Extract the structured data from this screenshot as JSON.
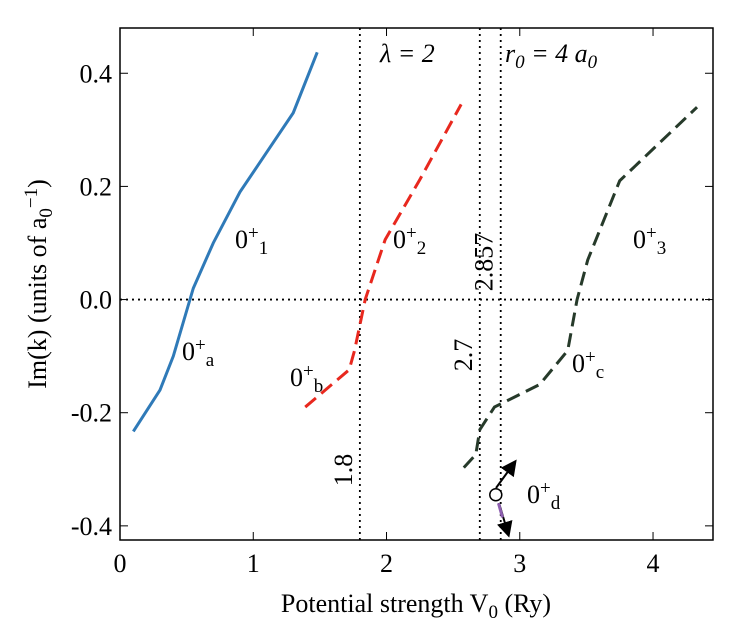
{
  "chart_data": {
    "type": "line",
    "xlabel": [
      {
        "t": "Potential strength "
      },
      {
        "t": "V"
      },
      {
        "sub": "0"
      },
      {
        "t": " (Ry)"
      }
    ],
    "ylabel": [
      {
        "t": "Im("
      },
      {
        "t": "k"
      },
      {
        "t": ") (units of "
      },
      {
        "t": "a"
      },
      {
        "sub": "0"
      },
      {
        "sup": "−1"
      },
      {
        "t": ")"
      }
    ],
    "xlim": [
      0,
      4.45
    ],
    "ylim": [
      -0.425,
      0.48
    ],
    "xticks": [
      0,
      1,
      2,
      3,
      4
    ],
    "yticks": [
      0.4,
      0.2,
      {
        "value": 0,
        "label": "0.0"
      },
      -0.2,
      -0.4
    ],
    "series": [
      {
        "color": "#2f7ab8",
        "style": "solid",
        "x": [
          0.1,
          0.3,
          0.4,
          0.5,
          0.55,
          0.7,
          0.9,
          1.1,
          1.3,
          1.48
        ],
        "values": [
          -0.233,
          -0.16,
          -0.1,
          -0.02,
          0.02,
          0.1,
          0.19,
          0.26,
          0.33,
          0.437
        ]
      },
      {
        "color": "#e8281e",
        "style": "dashed",
        "x": [
          1.39,
          1.72,
          1.76,
          1.84,
          1.99,
          2.25,
          2.56
        ],
        "values": [
          -0.19,
          -0.124,
          -0.09,
          0.0,
          0.106,
          0.212,
          0.345
        ]
      },
      {
        "color": "#263a2a",
        "style": "dashed",
        "x": [
          2.58,
          2.67,
          2.7,
          2.81,
          3.15,
          3.36,
          3.43,
          3.51,
          3.75,
          4.33
        ],
        "values": [
          -0.297,
          -0.274,
          -0.23,
          -0.19,
          -0.15,
          -0.09,
          0.0,
          0.07,
          0.21,
          0.34
        ]
      },
      {
        "color": "#8e5fb0",
        "style": "solid",
        "x": [
          2.84,
          2.87
        ],
        "values": [
          -0.36,
          -0.385
        ]
      }
    ],
    "point": {
      "x": 2.82,
      "y": -0.345
    },
    "vlines": [
      1.8,
      2.7,
      2.857
    ],
    "hline": 0,
    "annotations": [
      [
        {
          "t": "λ = 2"
        }
      ],
      [
        {
          "t": "r"
        },
        {
          "sub": "0"
        },
        {
          "t": " = 4 a"
        },
        {
          "sub": "0"
        }
      ],
      [
        {
          "t": "0"
        },
        {
          "sup": "+"
        },
        {
          "sub": "1"
        }
      ],
      [
        {
          "t": "0"
        },
        {
          "sup": "+"
        },
        {
          "sub": "2"
        }
      ],
      [
        {
          "t": "0"
        },
        {
          "sup": "+"
        },
        {
          "sub": "3"
        }
      ],
      [
        {
          "t": "0"
        },
        {
          "sup": "+"
        },
        {
          "sub": "a"
        }
      ],
      [
        {
          "t": "0"
        },
        {
          "sup": "+"
        },
        {
          "sub": "b"
        }
      ],
      [
        {
          "t": "0"
        },
        {
          "sup": "+"
        },
        {
          "sub": "c"
        }
      ],
      [
        {
          "t": "0"
        },
        {
          "sup": "+"
        },
        {
          "sub": "d"
        }
      ]
    ]
  }
}
